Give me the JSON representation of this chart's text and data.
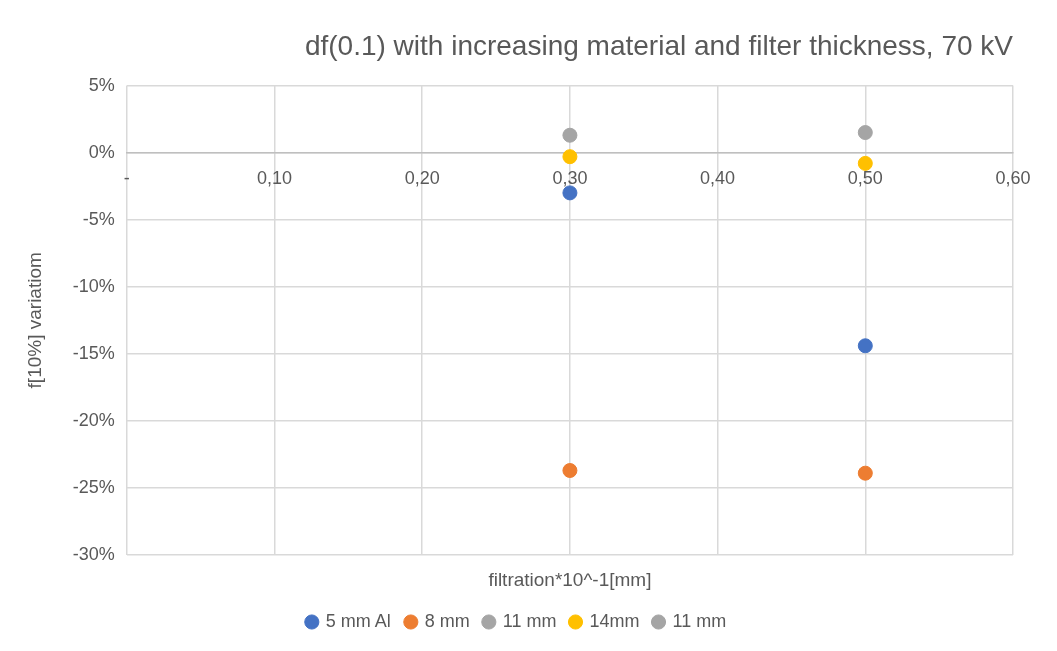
{
  "chart_data": {
    "type": "scatter",
    "title": "df(0.1) with increasing material and filter thickness, 70 kV",
    "xlabel": "filtration*10^-1[mm]",
    "ylabel": "f[10%] variatiom",
    "x": [
      0.3,
      0.5
    ],
    "series": [
      {
        "name": "5 mm Al",
        "color": "#4472c4",
        "values": [
          -3.0,
          -14.4
        ]
      },
      {
        "name": "8 mm",
        "color": "#ed7d31",
        "values": [
          -23.7,
          -23.9
        ]
      },
      {
        "name": "11 mm",
        "color": "#a5a5a5",
        "values": [
          null,
          null
        ]
      },
      {
        "name": "14mm",
        "color": "#ffc000",
        "values": [
          -0.3,
          -0.8
        ]
      },
      {
        "name": "11 mm",
        "color": "#a5a5a5",
        "values": [
          1.3,
          1.5
        ]
      }
    ],
    "xlim": [
      0,
      0.6
    ],
    "xticks": [
      {
        "value": 0,
        "label": "-"
      },
      {
        "value": 0.1,
        "label": "0,10"
      },
      {
        "value": 0.2,
        "label": "0,20"
      },
      {
        "value": 0.3,
        "label": "0,30"
      },
      {
        "value": 0.4,
        "label": "0,40"
      },
      {
        "value": 0.5,
        "label": "0,50"
      },
      {
        "value": 0.6,
        "label": "0,60"
      }
    ],
    "ylim": [
      -30,
      5
    ],
    "yticks": [
      {
        "value": -30,
        "label": "-30%"
      },
      {
        "value": -25,
        "label": "-25%"
      },
      {
        "value": -20,
        "label": "-20%"
      },
      {
        "value": -15,
        "label": "-15%"
      },
      {
        "value": -10,
        "label": "-10%"
      },
      {
        "value": -5,
        "label": "-5%"
      },
      {
        "value": 0,
        "label": "0%"
      },
      {
        "value": 5,
        "label": "5%"
      }
    ],
    "grid": true,
    "legend": "bottom",
    "marker": "circle"
  }
}
